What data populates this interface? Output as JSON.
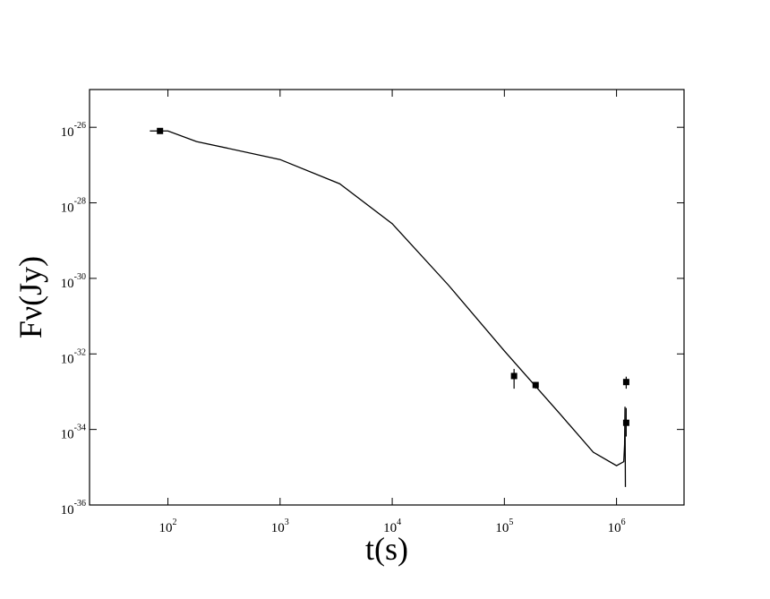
{
  "chart_data": {
    "type": "scatter",
    "xlabel": "t(s)",
    "ylabel": "Fν(Jy)",
    "xscale": "log",
    "yscale": "log",
    "xlim": [
      20,
      4000000
    ],
    "ylim": [
      1e-36,
      1e-25
    ],
    "xticks": [
      {
        "value": 100,
        "label": "10",
        "sup": "2"
      },
      {
        "value": 1000,
        "label": "10",
        "sup": "3"
      },
      {
        "value": 10000,
        "label": "10",
        "sup": "4"
      },
      {
        "value": 100000,
        "label": "10",
        "sup": "5"
      },
      {
        "value": 1000000,
        "label": "10",
        "sup": "6"
      }
    ],
    "yticks": [
      {
        "value": 1e-36,
        "label": "10",
        "sup": "-36"
      },
      {
        "value": 1e-34,
        "label": "10",
        "sup": "-34"
      },
      {
        "value": 1e-32,
        "label": "10",
        "sup": "-32"
      },
      {
        "value": 1e-30,
        "label": "10",
        "sup": "-30"
      },
      {
        "value": 1e-28,
        "label": "10",
        "sup": "-28"
      },
      {
        "value": 1e-26,
        "label": "10",
        "sup": "-26"
      }
    ],
    "points": {
      "color": "#000000",
      "x": [
        85,
        122000,
        190000,
        1220000,
        1220000
      ],
      "y": [
        8e-27,
        2.6e-33,
        1.5e-33,
        1.8e-33,
        1.5e-34
      ],
      "y_upper": [
        9e-27,
        4e-33,
        1.8e-33,
        2.5e-33,
        3.7e-34
      ],
      "y_lower": [
        7e-27,
        1.2e-33,
        1.2e-33,
        1.2e-33,
        6.5e-35
      ]
    },
    "curve": {
      "color": "#000000",
      "x": [
        69,
        100,
        180,
        1000,
        3400,
        10000,
        31600,
        100000,
        316000,
        620000,
        1000000,
        1160000,
        1180000,
        1190000,
        1200000
      ],
      "y": [
        8e-27,
        8e-27,
        4.2e-27,
        1.4e-27,
        3.2e-28,
        2.8e-29,
        6.7e-31,
        1.2e-32,
        2.5e-34,
        2.5e-35,
        1.1e-35,
        1.4e-35,
        4e-35,
        4e-34,
        3e-36
      ]
    }
  }
}
